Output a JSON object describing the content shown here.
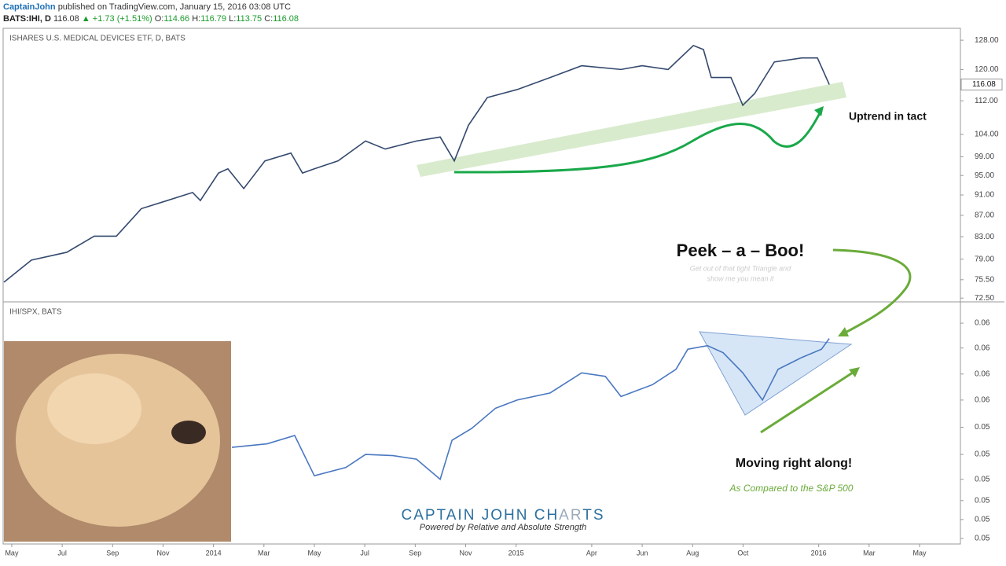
{
  "header": {
    "author": "CaptainJohn",
    "published": "published on TradingView.com, January 15, 2016 03:08 UTC",
    "symbol": "BATS:IHI, D",
    "last": "116.08",
    "change": "▲ +1.73 (+1.51%)",
    "ohlc": [
      {
        "label": "O:",
        "value": "114.66"
      },
      {
        "label": "H:",
        "value": "116.79"
      },
      {
        "label": "L:",
        "value": "113.75"
      },
      {
        "label": "C:",
        "value": "116.08"
      }
    ]
  },
  "chart_data": [
    {
      "type": "line",
      "title": "ISHARES U.S. MEDICAL DEVICES ETF, D, BATS",
      "log_scale": true,
      "xlim": [
        -0.31,
        37.62
      ],
      "ylim": [
        71.9,
        131.4
      ],
      "yticks": [
        {
          "value": 72.5,
          "label": "72.50"
        },
        {
          "value": 75.5,
          "label": "75.50"
        },
        {
          "value": 79,
          "label": "79.00"
        },
        {
          "value": 83,
          "label": "83.00"
        },
        {
          "value": 87,
          "label": "87.00"
        },
        {
          "value": 91,
          "label": "91.00"
        },
        {
          "value": 95,
          "label": "95.00"
        },
        {
          "value": 99,
          "label": "99.00"
        },
        {
          "value": 104,
          "label": "104.00"
        },
        {
          "value": 112,
          "label": "112.00"
        },
        {
          "value": 120,
          "label": "120.00"
        },
        {
          "value": 128,
          "label": "128.00"
        }
      ],
      "last_value": 116.08,
      "series": [
        {
          "name": "IHI",
          "color": "#34496e",
          "x": [
            -0.31,
            0.78,
            2.18,
            3.27,
            4.15,
            5.14,
            6.17,
            7.17,
            7.48,
            8.2,
            8.57,
            9.2,
            10.04,
            11.07,
            11.53,
            12.0,
            12.94,
            14.03,
            14.81,
            16.05,
            16.99,
            17.55,
            18.11,
            18.86,
            20.04,
            21.35,
            22.6,
            24.16,
            25.0,
            26.03,
            27.03,
            27.43,
            27.74,
            28.52,
            28.99,
            29.46,
            30.24,
            31.33,
            31.95,
            32.42
          ],
          "values": [
            75.08,
            78.84,
            80.2,
            83.1,
            83.1,
            88.3,
            89.9,
            91.5,
            89.9,
            95.5,
            96.4,
            92.3,
            98.1,
            99.8,
            95.5,
            96.4,
            98.1,
            102.5,
            100.7,
            102.5,
            103.4,
            98.1,
            106.1,
            112.8,
            114.8,
            117.9,
            121.0,
            120.0,
            121.0,
            120.0,
            126.5,
            125.4,
            117.9,
            117.9,
            110.9,
            113.8,
            122.0,
            123.1,
            123.1,
            116.08
          ]
        }
      ]
    },
    {
      "type": "line",
      "title": "IHI/SPX, BATS",
      "xlim": [
        -0.31,
        37.62
      ],
      "ylim": [
        0.04453,
        0.065
      ],
      "yticks": [
        {
          "value": 0.045,
          "label": "0.05"
        },
        {
          "value": 0.0466,
          "label": "0.05"
        },
        {
          "value": 0.0482,
          "label": "0.05"
        },
        {
          "value": 0.05,
          "label": "0.05"
        },
        {
          "value": 0.0521,
          "label": "0.05"
        },
        {
          "value": 0.0544,
          "label": "0.05"
        },
        {
          "value": 0.0567,
          "label": "0.06"
        },
        {
          "value": 0.0589,
          "label": "0.06"
        },
        {
          "value": 0.0611,
          "label": "0.06"
        },
        {
          "value": 0.0632,
          "label": "0.06"
        }
      ],
      "xticks": [
        {
          "value": 0,
          "label": "May"
        },
        {
          "value": 2,
          "label": "Jul"
        },
        {
          "value": 4,
          "label": "Sep"
        },
        {
          "value": 6,
          "label": "Nov"
        },
        {
          "value": 8,
          "label": "2014"
        },
        {
          "value": 10,
          "label": "Mar"
        },
        {
          "value": 12,
          "label": "May"
        },
        {
          "value": 14,
          "label": "Jul"
        },
        {
          "value": 16,
          "label": "Sep"
        },
        {
          "value": 18,
          "label": "Nov"
        },
        {
          "value": 20,
          "label": "2015"
        },
        {
          "value": 23,
          "label": "Apr"
        },
        {
          "value": 25,
          "label": "Jun"
        },
        {
          "value": 27,
          "label": "Aug"
        },
        {
          "value": 29,
          "label": "Oct"
        },
        {
          "value": 32,
          "label": "2016"
        },
        {
          "value": 34,
          "label": "Mar"
        },
        {
          "value": 36,
          "label": "May"
        }
      ],
      "series": [
        {
          "name": "IHI/SPX",
          "color": "#4a78c0",
          "x": [
            8.73,
            10.13,
            11.22,
            12.0,
            13.25,
            14.03,
            15.12,
            16.05,
            16.99,
            17.46,
            18.24,
            19.18,
            20.04,
            21.35,
            22.6,
            23.54,
            24.16,
            25.41,
            26.34,
            26.81,
            27.59,
            28.21,
            28.99,
            29.77,
            30.39,
            31.33,
            32.11,
            32.42
          ],
          "values": [
            0.0527,
            0.053,
            0.0537,
            0.0503,
            0.051,
            0.0521,
            0.052,
            0.0517,
            0.05,
            0.0533,
            0.0543,
            0.056,
            0.0567,
            0.0573,
            0.059,
            0.0587,
            0.057,
            0.058,
            0.0593,
            0.061,
            0.0613,
            0.0607,
            0.059,
            0.0567,
            0.0593,
            0.0603,
            0.061,
            0.0619
          ]
        }
      ]
    }
  ],
  "annotations": {
    "uptrend": "Uptrend in tact",
    "peek": "Peek – a – Boo!",
    "note_1": "Get out of that tight Triangle and",
    "note_2": "show me you mean it",
    "moving": "Moving right along!",
    "compared": "As Compared to the S&P 500",
    "brand": [
      "CAPTAIN",
      "JOHN",
      "CH",
      "AR",
      "TS"
    ],
    "powered": "Powered by Relative and  Absolute Strength"
  }
}
